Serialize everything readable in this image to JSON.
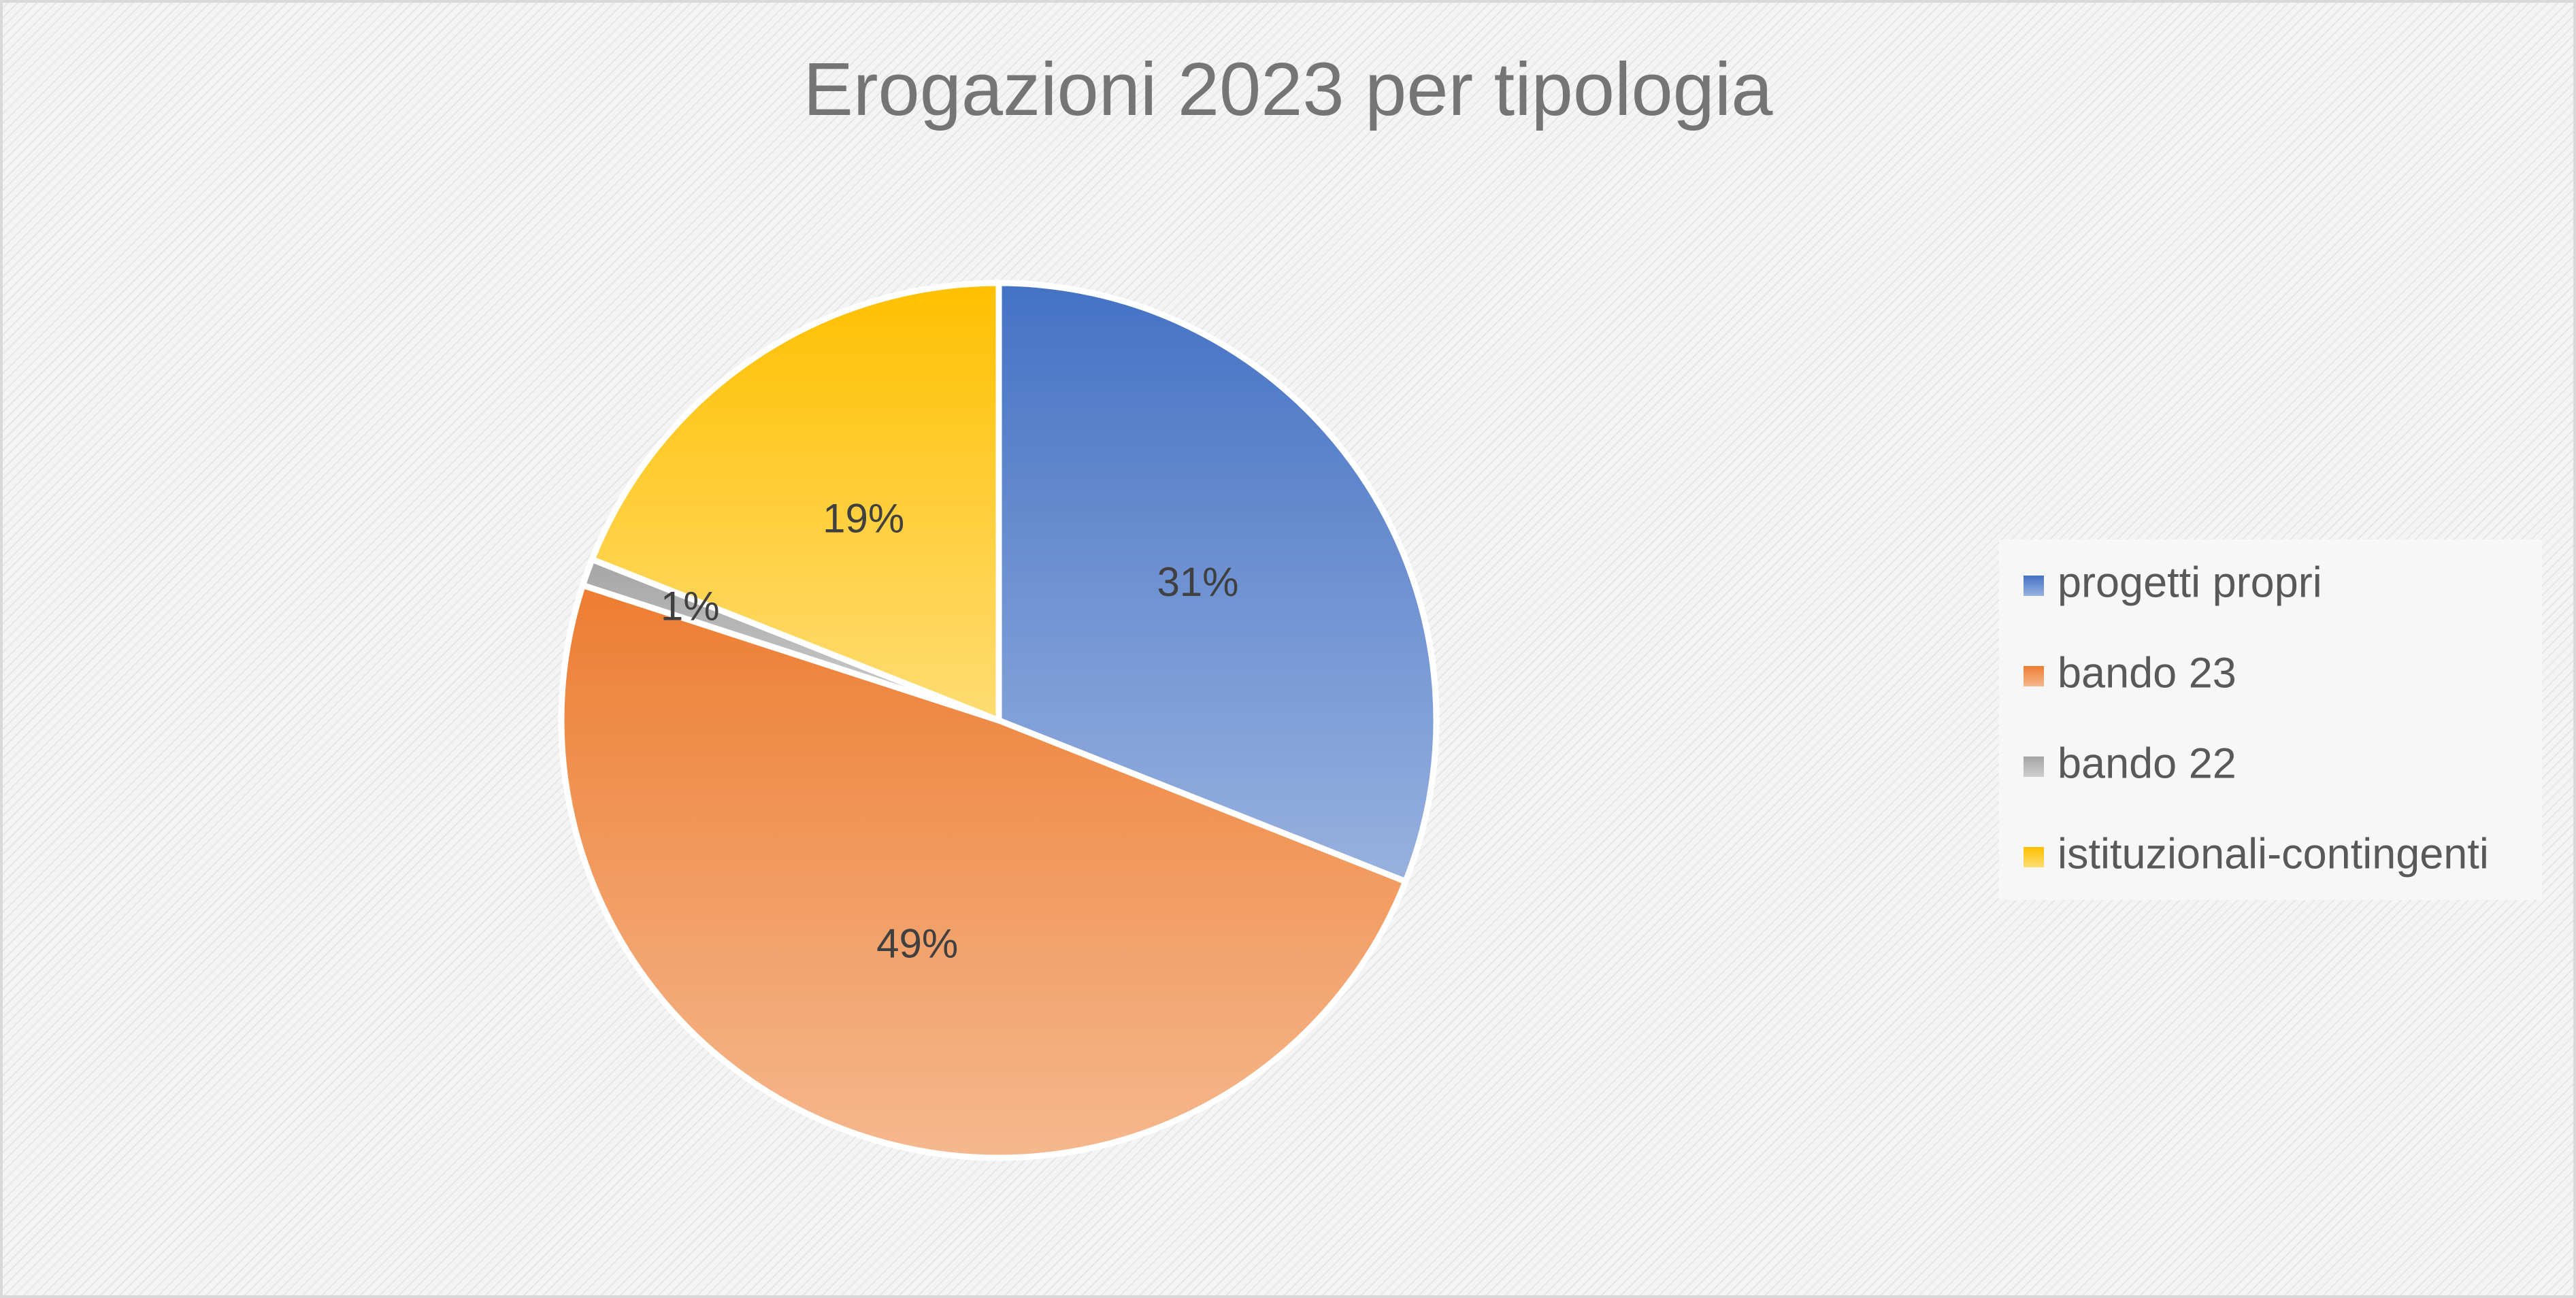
{
  "chart_data": {
    "type": "pie",
    "title": "Erogazioni 2023 per tipologia",
    "categories": [
      "progetti propri",
      "bando 23",
      "bando 22",
      "istituzionali-contingenti"
    ],
    "values": [
      31,
      49,
      1,
      19
    ],
    "value_labels": [
      "31%",
      "49%",
      "1%",
      "19%"
    ],
    "colors": [
      "#4472c4",
      "#ed7d31",
      "#a5a5a5",
      "#ffc000"
    ],
    "legend": "right"
  }
}
